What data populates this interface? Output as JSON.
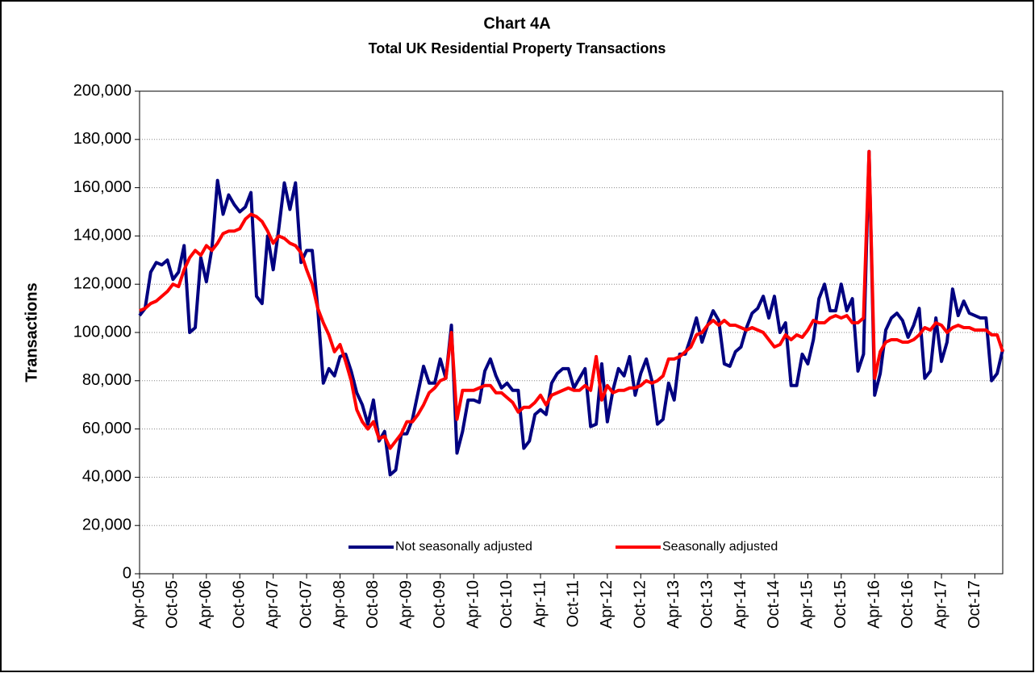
{
  "chart_data": {
    "type": "line",
    "title": "Chart 4A",
    "subtitle": "Total UK Residential Property Transactions",
    "y_label": "Transactions",
    "categories": [
      "Apr-05",
      null,
      null,
      null,
      null,
      null,
      "Oct-05",
      null,
      null,
      null,
      null,
      null,
      "Apr-06",
      null,
      null,
      null,
      null,
      null,
      "Oct-06",
      null,
      null,
      null,
      null,
      null,
      "Apr-07",
      null,
      null,
      null,
      null,
      null,
      "Oct-07",
      null,
      null,
      null,
      null,
      null,
      "Apr-08",
      null,
      null,
      null,
      null,
      null,
      "Oct-08",
      null,
      null,
      null,
      null,
      null,
      "Apr-09",
      null,
      null,
      null,
      null,
      null,
      "Oct-09",
      null,
      null,
      null,
      null,
      null,
      "Apr-10",
      null,
      null,
      null,
      null,
      null,
      "Oct-10",
      null,
      null,
      null,
      null,
      null,
      "Apr-11",
      null,
      null,
      null,
      null,
      null,
      "Oct-11",
      null,
      null,
      null,
      null,
      null,
      "Apr-12",
      null,
      null,
      null,
      null,
      null,
      "Oct-12",
      null,
      null,
      null,
      null,
      null,
      "Apr-13",
      null,
      null,
      null,
      null,
      null,
      "Oct-13",
      null,
      null,
      null,
      null,
      null,
      "Apr-14",
      null,
      null,
      null,
      null,
      null,
      "Oct-14",
      null,
      null,
      null,
      null,
      null,
      "Apr-15",
      null,
      null,
      null,
      null,
      null,
      "Oct-15",
      null,
      null,
      null,
      null,
      null,
      "Apr-16",
      null,
      null,
      null,
      null,
      null,
      "Oct-16",
      null,
      null,
      null,
      null,
      null,
      "Apr-17",
      null,
      null,
      null,
      null,
      null,
      "Oct-17",
      null,
      null,
      null,
      null,
      null
    ],
    "series": [
      {
        "name": "Not seasonally adjusted",
        "color": "#000080",
        "values": [
          107000,
          110000,
          125000,
          129000,
          128000,
          130000,
          122000,
          125000,
          136000,
          100000,
          102000,
          131000,
          121000,
          135000,
          163000,
          149000,
          157000,
          153000,
          150000,
          152000,
          158000,
          115000,
          112000,
          140000,
          126000,
          143000,
          162000,
          151000,
          162000,
          129000,
          134000,
          134000,
          110000,
          79000,
          85000,
          82000,
          90000,
          91000,
          84000,
          75000,
          70000,
          62000,
          72000,
          55000,
          59000,
          41000,
          43000,
          58000,
          58000,
          64000,
          75000,
          86000,
          79000,
          79000,
          89000,
          81000,
          103000,
          50000,
          59000,
          72000,
          72000,
          71000,
          84000,
          89000,
          82000,
          77000,
          79000,
          76000,
          76000,
          52000,
          55000,
          66000,
          68000,
          66000,
          79000,
          83000,
          85000,
          85000,
          77000,
          81000,
          85000,
          61000,
          62000,
          87000,
          63000,
          76000,
          85000,
          82000,
          90000,
          74000,
          83000,
          89000,
          80000,
          62000,
          64000,
          79000,
          72000,
          91000,
          91000,
          98000,
          106000,
          96000,
          103000,
          109000,
          105000,
          87000,
          86000,
          92000,
          94000,
          102000,
          108000,
          110000,
          115000,
          106000,
          115000,
          100000,
          104000,
          78000,
          78000,
          91000,
          87000,
          97000,
          114000,
          120000,
          109000,
          109000,
          120000,
          109000,
          114000,
          84000,
          91000,
          175000,
          74000,
          83000,
          101000,
          106000,
          108000,
          105000,
          98000,
          103000,
          110000,
          81000,
          84000,
          106000,
          88000,
          96000,
          118000,
          107000,
          113000,
          108000,
          107000,
          106000,
          106000,
          80000,
          83000,
          93000
        ]
      },
      {
        "name": "Seasonally adjusted",
        "color": "#ff0000",
        "values": [
          109000,
          110000,
          112000,
          113000,
          115000,
          117000,
          120000,
          119000,
          126000,
          131000,
          134000,
          132000,
          136000,
          134000,
          137000,
          141000,
          142000,
          142000,
          143000,
          147000,
          149000,
          148000,
          146000,
          142000,
          137000,
          140000,
          139000,
          137000,
          136000,
          133000,
          126000,
          120000,
          110000,
          104000,
          99000,
          92000,
          95000,
          88000,
          80000,
          68000,
          63000,
          60000,
          63000,
          56000,
          57000,
          52000,
          55000,
          58000,
          63000,
          63000,
          66000,
          70000,
          75000,
          77000,
          80000,
          81000,
          100000,
          64000,
          76000,
          76000,
          76000,
          77000,
          78000,
          78000,
          75000,
          75000,
          73000,
          71000,
          67000,
          69000,
          69000,
          71000,
          74000,
          70000,
          74000,
          75000,
          76000,
          77000,
          76000,
          76000,
          78000,
          76000,
          90000,
          72000,
          78000,
          75000,
          76000,
          76000,
          77000,
          77000,
          78000,
          80000,
          79000,
          80000,
          82000,
          89000,
          89000,
          90000,
          92000,
          94000,
          99000,
          100000,
          103000,
          105000,
          103000,
          105000,
          103000,
          103000,
          102000,
          101000,
          102000,
          101000,
          100000,
          97000,
          94000,
          95000,
          99000,
          97000,
          99000,
          98000,
          101000,
          105000,
          104000,
          104000,
          106000,
          107000,
          106000,
          107000,
          104000,
          104000,
          106000,
          175000,
          81000,
          92000,
          96000,
          97000,
          97000,
          96000,
          96000,
          97000,
          99000,
          102000,
          101000,
          104000,
          103000,
          100000,
          102000,
          103000,
          102000,
          102000,
          101000,
          101000,
          101000,
          99000,
          99000,
          92000
        ]
      }
    ],
    "ylim": [
      0,
      200000
    ],
    "yticks": [
      0,
      {
        "value": 20000,
        "label": "20,000"
      },
      {
        "value": 40000,
        "label": "40,000"
      },
      {
        "value": 60000,
        "label": "60,000"
      },
      {
        "value": 80000,
        "label": "80,000"
      },
      {
        "value": 100000,
        "label": "100,000"
      },
      {
        "value": 120000,
        "label": "120,000"
      },
      {
        "value": 140000,
        "label": "140,000"
      },
      {
        "value": 160000,
        "label": "160,000"
      },
      {
        "value": 180000,
        "label": "180,000"
      },
      {
        "value": 200000,
        "label": "200,000"
      }
    ],
    "grid": true,
    "legend": "bottom"
  }
}
